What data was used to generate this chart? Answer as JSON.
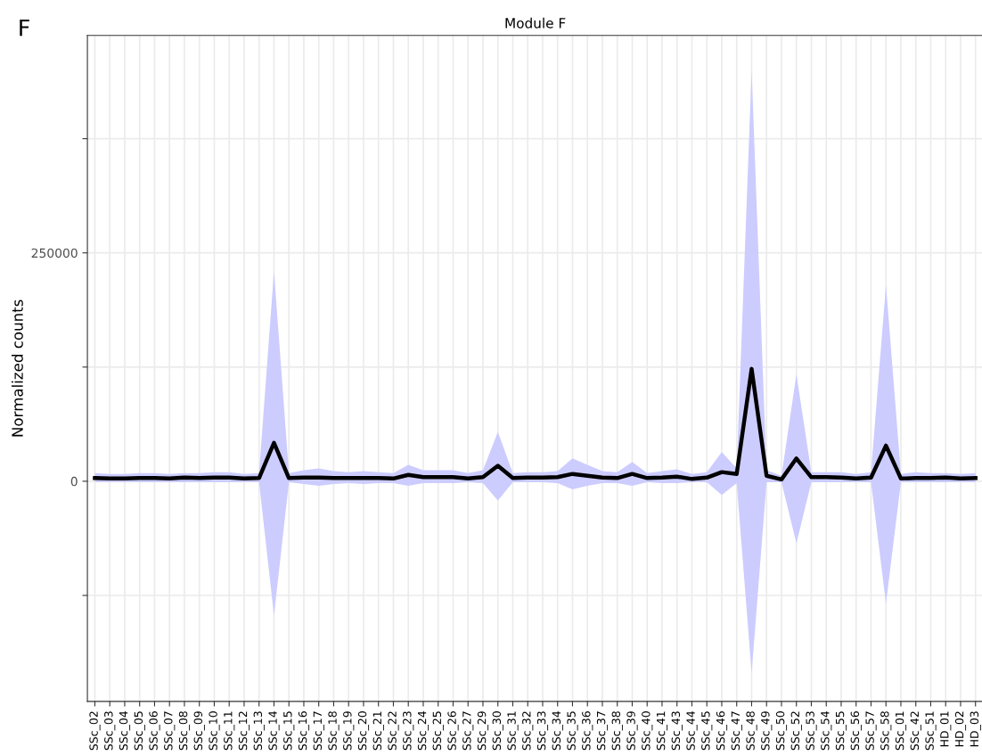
{
  "chart_data": {
    "type": "line",
    "title": "Module F",
    "ylabel": "Normalized counts",
    "annotations": [
      "F"
    ],
    "categories": [
      "SSc_02",
      "SSc_03",
      "SSc_04",
      "SSc_05",
      "SSc_06",
      "SSc_07",
      "SSc_08",
      "SSc_09",
      "SSc_10",
      "SSc_11",
      "SSc_12",
      "SSc_13",
      "SSc_14",
      "SSc_15",
      "SSc_16",
      "SSc_17",
      "SSc_18",
      "SSc_19",
      "SSc_20",
      "SSc_21",
      "SSc_22",
      "SSc_23",
      "SSc_24",
      "SSc_25",
      "SSc_26",
      "SSc_27",
      "SSc_29",
      "SSc_30",
      "SSc_31",
      "SSc_32",
      "SSc_33",
      "SSc_34",
      "SSc_35",
      "SSc_36",
      "SSc_37",
      "SSc_38",
      "SSc_39",
      "SSc_40",
      "SSc_41",
      "SSc_43",
      "SSc_44",
      "SSc_45",
      "SSc_46",
      "SSc_47",
      "SSc_48",
      "SSc_49",
      "SSc_50",
      "SSc_52",
      "SSc_53",
      "SSc_54",
      "SSc_55",
      "SSc_56",
      "SSc_57",
      "SSc_58",
      "SSc_01",
      "SSc_42",
      "SSc_51",
      "HD_01",
      "HD_02",
      "HD_03"
    ],
    "series": [
      {
        "color": "#000000",
        "values": [
          3500,
          3000,
          3000,
          3500,
          3500,
          3000,
          4000,
          3500,
          4000,
          4000,
          3000,
          3500,
          42000,
          3500,
          4000,
          4000,
          3500,
          3500,
          3500,
          3500,
          3000,
          7000,
          4500,
          4500,
          4500,
          3000,
          4500,
          17000,
          3500,
          4000,
          4000,
          4500,
          8000,
          6000,
          4000,
          3500,
          8000,
          3500,
          4000,
          5000,
          2500,
          4000,
          10000,
          8000,
          123000,
          6000,
          2000,
          25000,
          4500,
          4500,
          4000,
          3000,
          4000,
          39000,
          3000,
          3500,
          3500,
          4000,
          3000,
          3500
        ],
        "upper": [
          9000,
          8000,
          8000,
          9000,
          9000,
          8000,
          9000,
          9000,
          10000,
          10000,
          8000,
          9000,
          230000,
          9000,
          12000,
          14000,
          11000,
          10000,
          11000,
          10000,
          9000,
          18000,
          12000,
          12000,
          12000,
          9000,
          12000,
          54000,
          9000,
          10000,
          10000,
          11000,
          25000,
          18000,
          11000,
          10000,
          21000,
          9000,
          11000,
          13000,
          8000,
          10000,
          32000,
          14000,
          450000,
          12000,
          6000,
          117000,
          10000,
          10000,
          10000,
          8000,
          10000,
          215000,
          8000,
          10000,
          9000,
          9000,
          8000,
          9000
        ],
        "lower": [
          -1000,
          -1000,
          -1000,
          -1000,
          -1000,
          -1000,
          -1000,
          -1000,
          -1000,
          -1000,
          -1000,
          -1000,
          -147000,
          -1000,
          -3000,
          -5000,
          -3000,
          -2000,
          -3000,
          -2000,
          -2000,
          -5000,
          -2000,
          -2000,
          -2000,
          -1000,
          -2000,
          -21000,
          -1000,
          -1000,
          -1000,
          -2000,
          -9000,
          -5000,
          -2000,
          -2000,
          -5000,
          -1000,
          -2000,
          -2000,
          -1000,
          -1000,
          -15000,
          -2000,
          -210000,
          -1000,
          -1000,
          -68000,
          -1000,
          -1000,
          -1000,
          -1000,
          -1000,
          -134000,
          -1000,
          -1000,
          -1000,
          -1000,
          -1000,
          -1000
        ]
      }
    ],
    "ylim": [
      -241000,
      488000
    ],
    "yticks": [
      {
        "value": -125000,
        "label": null
      },
      0,
      {
        "value": 125000,
        "label": null
      },
      250000,
      {
        "value": 375000,
        "label": null
      }
    ],
    "grid": true,
    "legend": false,
    "line_style": "solid"
  }
}
